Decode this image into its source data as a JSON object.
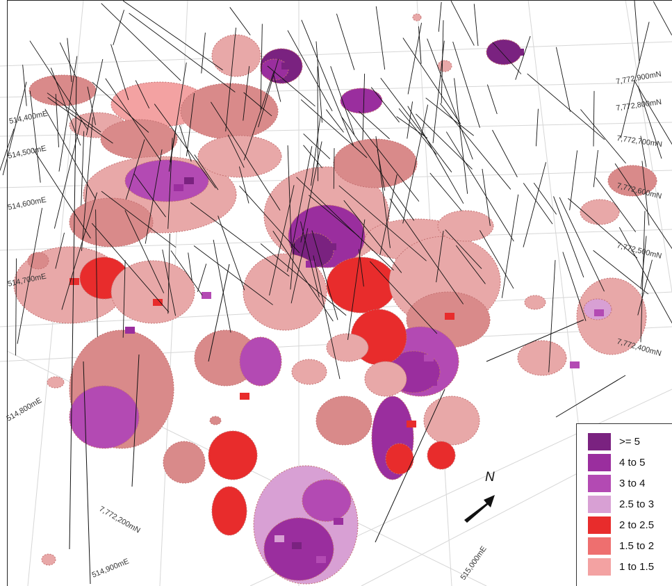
{
  "grid_labels": {
    "easting": [
      "514,400mE",
      "514,500mE",
      "514,600mE",
      "514,700mE",
      "514,800mE",
      "514,900mE",
      "515,000mE"
    ],
    "northing": [
      "7,772,900mN",
      "7,772,800mN",
      "7,772,700mN",
      "7,772,600mN",
      "7,772,500mN",
      "7,772,400mN",
      "7,772,200mN"
    ]
  },
  "legend": {
    "items": [
      {
        "label": ">= 5",
        "color": "#7a2280"
      },
      {
        "label": "4 to 5",
        "color": "#9a2e9e"
      },
      {
        "label": "3 to 4",
        "color": "#b34ab3"
      },
      {
        "label": "2.5 to 3",
        "color": "#d8a0d4"
      },
      {
        "label": "2 to 2.5",
        "color": "#e82c2c"
      },
      {
        "label": "1.5 to 2",
        "color": "#ee6f6f"
      },
      {
        "label": "1 to 1.5",
        "color": "#f3a2a2"
      }
    ]
  },
  "north_arrow": {
    "label": "N"
  },
  "colors": {
    "grid_line": "#d6d6d6",
    "drill_trace": "#111111",
    "block_pale": "#e8a8a8",
    "block_mid": "#d98a8a",
    "block_shade": "#c47070"
  }
}
